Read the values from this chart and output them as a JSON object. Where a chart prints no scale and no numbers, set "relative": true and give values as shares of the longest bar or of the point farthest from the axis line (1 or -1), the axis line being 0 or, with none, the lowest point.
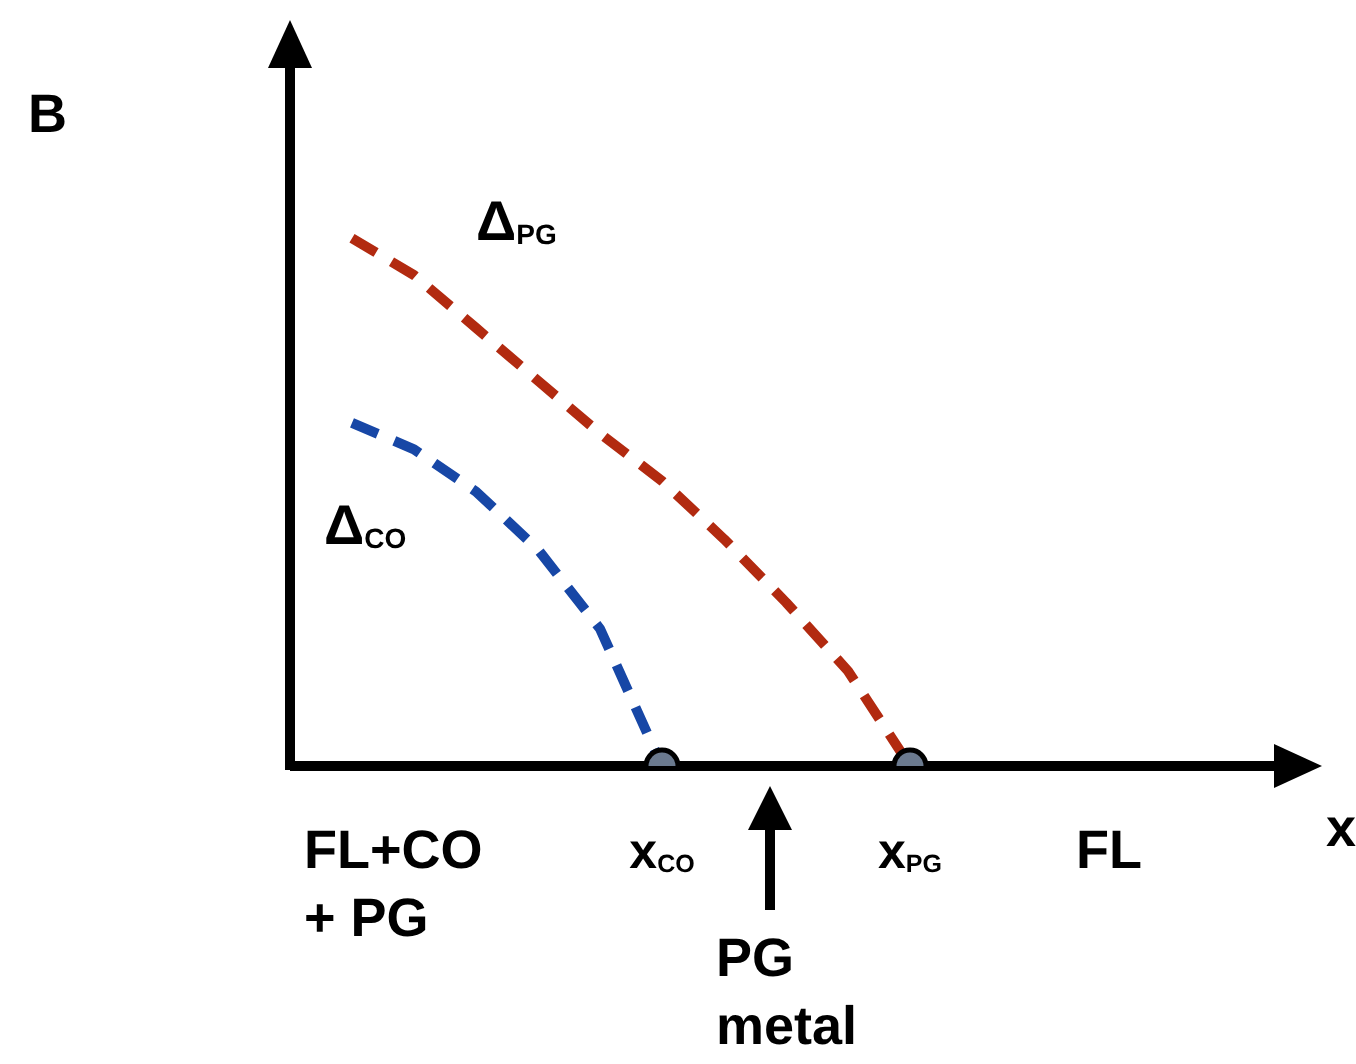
{
  "chart_data": {
    "type": "line",
    "relative": true,
    "xlabel": "x",
    "ylabel": "B",
    "categories": [
      null,
      null,
      null,
      null,
      null,
      null,
      "x$_{CO}$",
      null,
      null,
      null,
      "x$_{PG}$",
      null,
      null,
      null,
      null,
      null,
      null
    ],
    "series": [
      {
        "name": "Δ$_{PG}$",
        "color": "#b22a10",
        "line_style": "dashed",
        "values": [
          null,
          1.0,
          0.93,
          0.83,
          0.73,
          0.63,
          0.54,
          0.43,
          0.31,
          0.18,
          0,
          null,
          null,
          null,
          null,
          null,
          null
        ]
      },
      {
        "name": "Δ$_{CO}$",
        "color": "#1747a6",
        "line_style": "dashed",
        "values": [
          null,
          0.65,
          0.6,
          0.52,
          0.41,
          0.26,
          0,
          null,
          null,
          null,
          null,
          null,
          null,
          null,
          null,
          null,
          null
        ]
      },
      {
        "type": "scatter",
        "marker": "circle",
        "color": "#6b7a8f",
        "x": [
          "x$_{CO}$",
          "x$_{PG}$"
        ],
        "values": [
          0,
          0
        ]
      }
    ],
    "annotations": [
      "FL+CO\n+ PG",
      "PG\nmetal",
      "FL"
    ]
  }
}
